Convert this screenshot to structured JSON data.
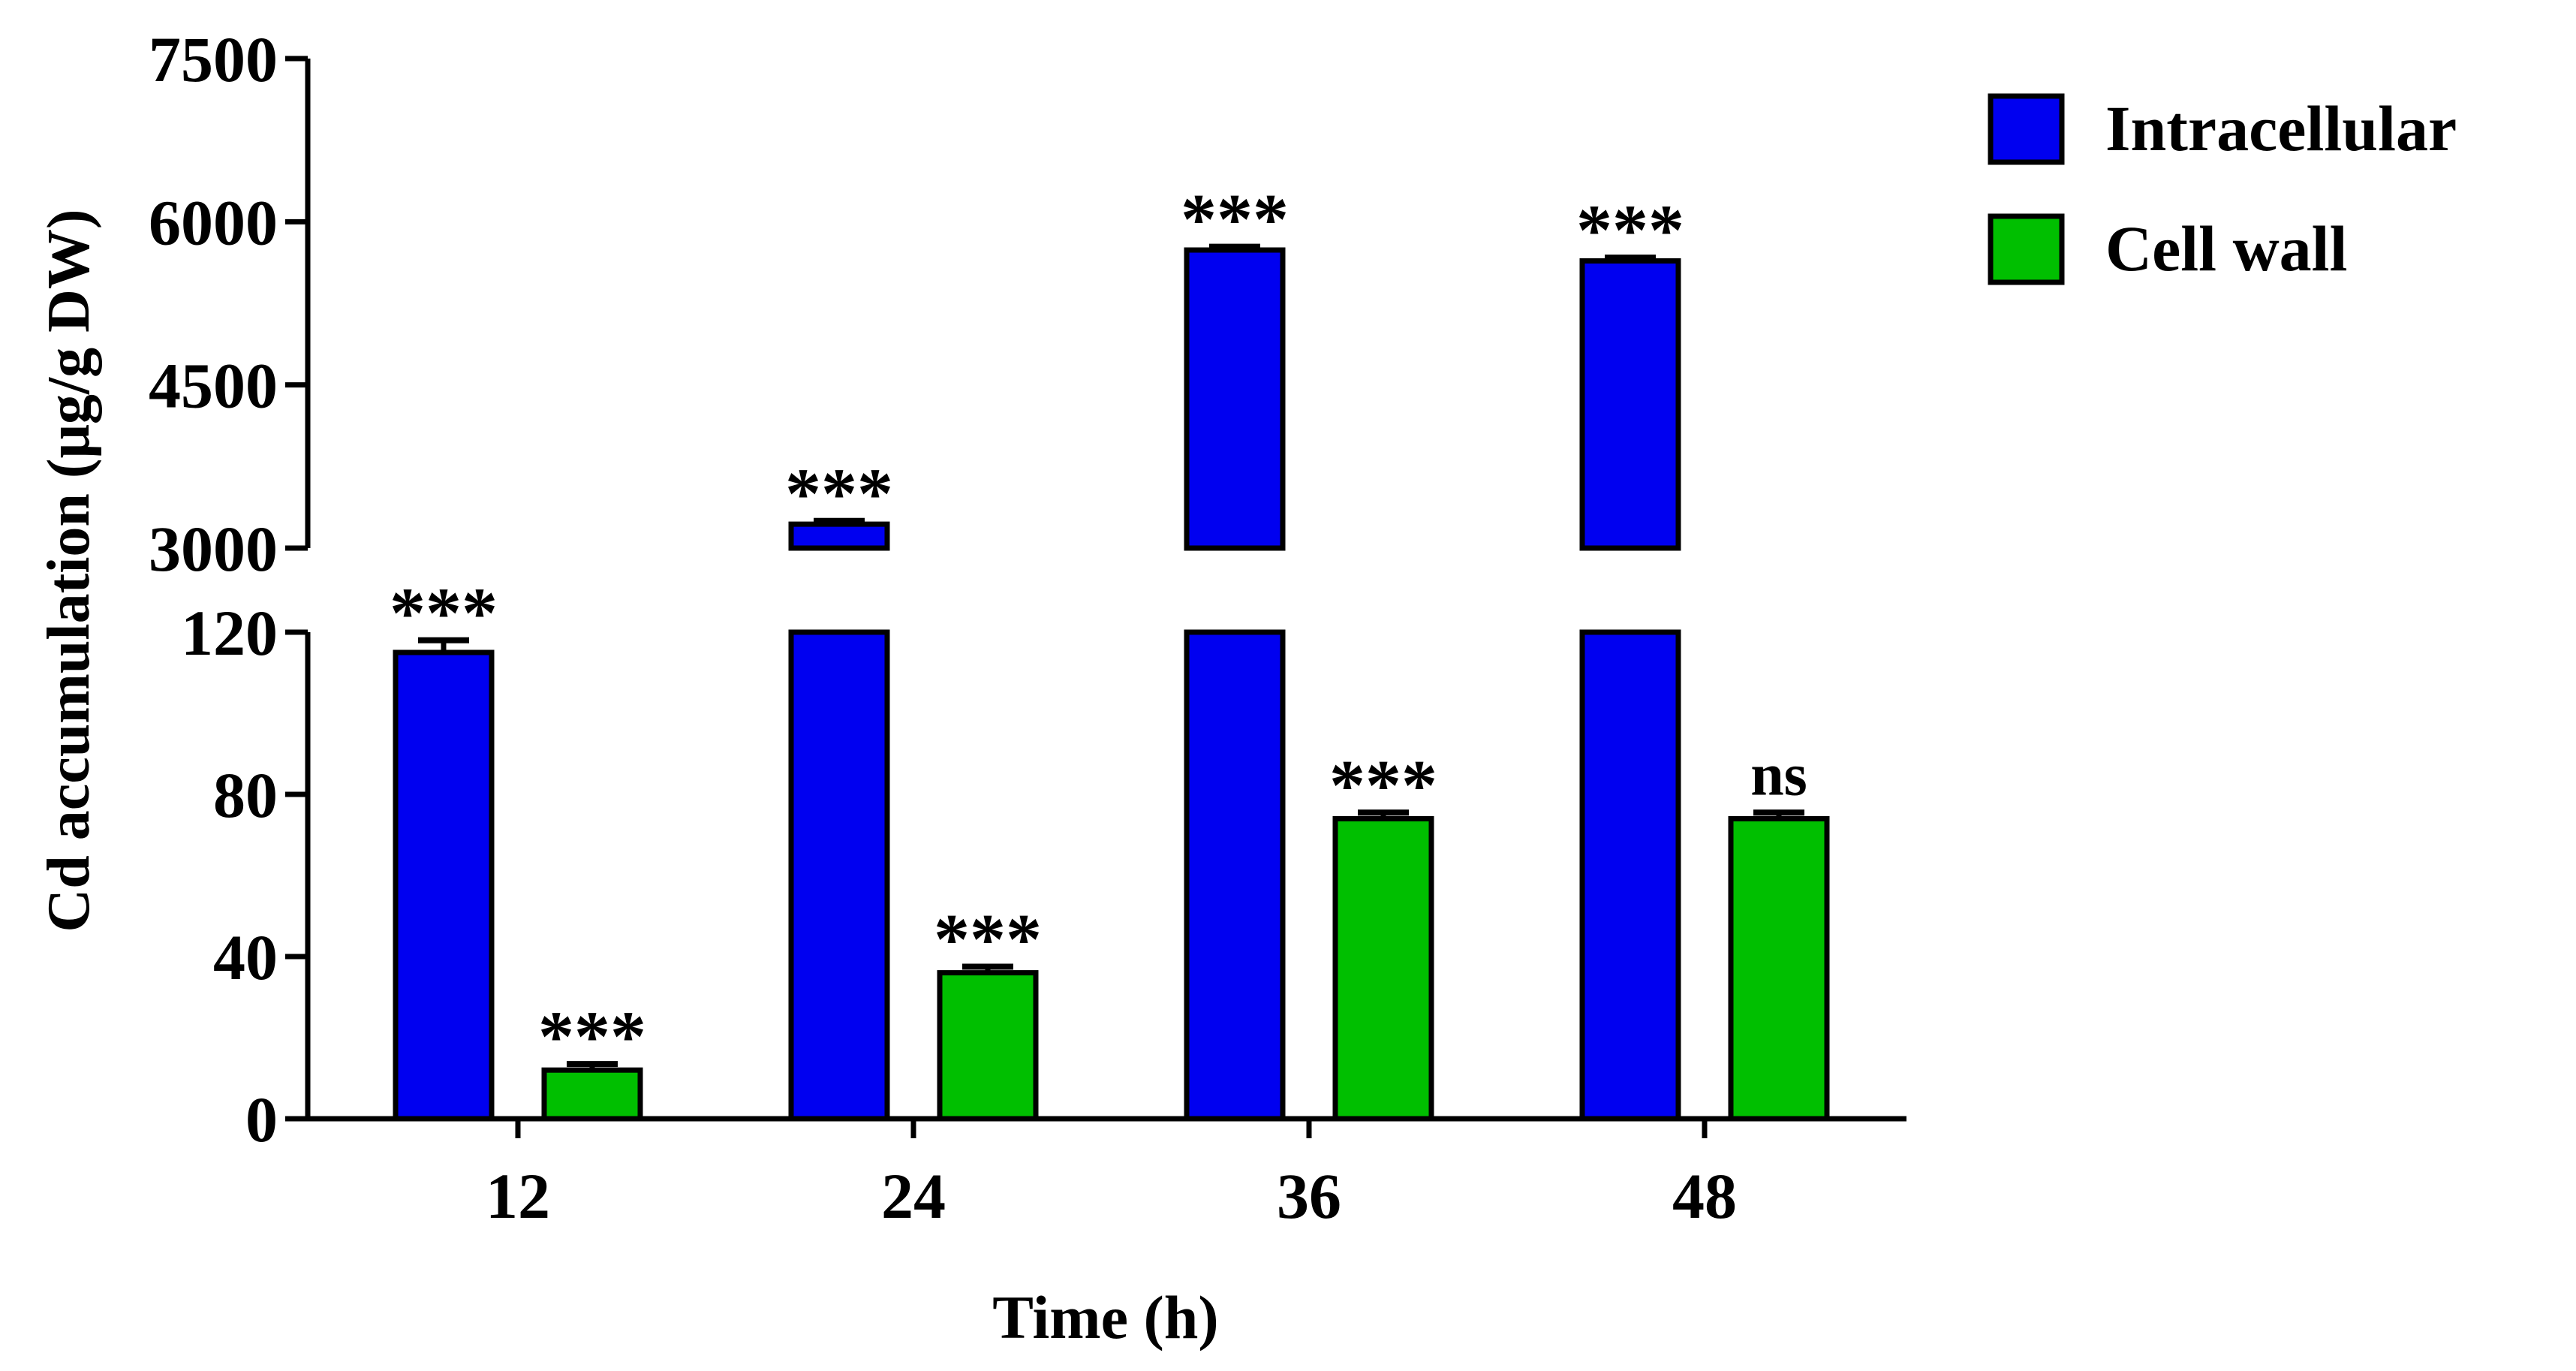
{
  "chart_data": {
    "type": "bar",
    "xlabel": "Time (h)",
    "ylabel": "Cd accumulation (μg/g DW)",
    "categories": [
      "12",
      "24",
      "36",
      "48"
    ],
    "series": [
      {
        "name": "Intracellular",
        "color": "#0000f0",
        "values": [
          115,
          3220,
          5740,
          5640
        ],
        "errors": [
          3,
          30,
          30,
          30
        ],
        "significance": [
          "***",
          "***",
          "***",
          "***"
        ]
      },
      {
        "name": "Cell wall",
        "color": "#00bf00",
        "values": [
          12,
          36,
          74,
          74
        ],
        "errors": [
          1.5,
          1.5,
          1.5,
          1.5
        ],
        "significance": [
          "***",
          "***",
          "***",
          "ns"
        ]
      }
    ],
    "axis_break": {
      "lower_range": [
        0,
        120
      ],
      "lower_ticks": [
        0,
        40,
        80,
        120
      ],
      "upper_range": [
        3000,
        7500
      ],
      "upper_ticks": [
        3000,
        4500,
        6000,
        7500
      ]
    },
    "grid": false,
    "legend_position": "top-right"
  }
}
